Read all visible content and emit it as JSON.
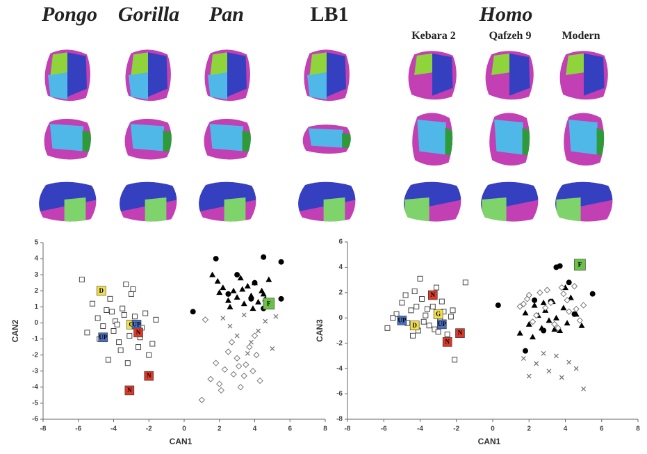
{
  "header": {
    "genera": [
      "Pongo",
      "Gorilla",
      "Pan",
      "LB1",
      "Homo"
    ],
    "homo_specimens": [
      "Kebara 2",
      "Qafzeh 9",
      "Modern"
    ]
  },
  "chart_data": [
    {
      "type": "scatter",
      "xlabel": "CAN1",
      "ylabel": "CAN2",
      "xlim": [
        -8,
        8
      ],
      "ylim": [
        -6,
        5
      ],
      "xticks": [
        -8,
        -6,
        -4,
        -2,
        0,
        2,
        4,
        6,
        8
      ],
      "yticks": [
        -6,
        -5,
        -4,
        -3,
        -2,
        -1,
        0,
        1,
        2,
        3,
        4,
        5
      ],
      "series": [
        {
          "marker": "square",
          "color": "#444444",
          "x": [
            -5.8,
            -5.2,
            -4.9,
            -4.6,
            -4.4,
            -4.2,
            -4.0,
            -3.9,
            -3.7,
            -3.5,
            -3.3,
            -3.1,
            -3.0,
            -2.8,
            -2.6,
            -2.4,
            -2.2,
            -2.0,
            -1.8,
            -1.6,
            -4.8,
            -4.3,
            -3.8,
            -3.4,
            -3.2,
            -2.9,
            -5.5,
            -4.1,
            -3.6,
            -2.5
          ],
          "y": [
            2.7,
            1.2,
            0.3,
            -0.2,
            0.8,
            1.5,
            -0.5,
            0.1,
            -1.2,
            0.9,
            2.4,
            -0.8,
            1.8,
            0.4,
            -1.5,
            -0.3,
            0.6,
            -2.0,
            -1.3,
            0.2,
            -1.0,
            -2.3,
            -0.1,
            0.5,
            -2.5,
            2.1,
            -0.6,
            0.7,
            -1.7,
            -0.9
          ]
        },
        {
          "marker": "triangle",
          "color": "#000000",
          "x": [
            1.6,
            1.9,
            2.2,
            2.5,
            2.8,
            3.0,
            3.2,
            3.4,
            3.6,
            3.8,
            4.0,
            4.2,
            4.4,
            4.6,
            4.8,
            2.0,
            2.6,
            3.3,
            3.9,
            4.5
          ],
          "y": [
            3.0,
            2.6,
            2.2,
            1.4,
            2.0,
            1.6,
            2.8,
            1.2,
            2.3,
            1.7,
            2.5,
            1.3,
            2.0,
            1.5,
            2.7,
            1.9,
            1.0,
            2.1,
            0.9,
            1.8
          ]
        },
        {
          "marker": "circle",
          "color": "#000000",
          "x": [
            0.5,
            1.8,
            4.5,
            5.5,
            3.0,
            4.0,
            5.5,
            4.5,
            2.5,
            3.8
          ],
          "y": [
            0.7,
            4.0,
            4.1,
            3.8,
            3.0,
            2.5,
            1.5,
            0.9,
            1.8,
            1.5
          ]
        },
        {
          "marker": "diamond",
          "color": "#777777",
          "x": [
            1.0,
            1.5,
            1.8,
            2.0,
            2.3,
            2.5,
            2.8,
            3.0,
            3.2,
            3.5,
            3.7,
            3.9,
            4.1,
            4.3,
            1.2,
            2.1,
            2.7,
            3.4,
            4.0,
            3.1
          ],
          "y": [
            -4.8,
            -3.5,
            -2.5,
            -3.8,
            -2.9,
            -1.8,
            -3.2,
            -2.2,
            -4.0,
            -2.6,
            -1.5,
            -3.0,
            -2.0,
            -3.6,
            0.2,
            -4.2,
            -1.2,
            -3.3,
            -0.8,
            -2.7
          ]
        },
        {
          "marker": "cross",
          "color": "#777777",
          "x": [
            2.2,
            2.6,
            3.0,
            3.4,
            3.8,
            4.2,
            4.6,
            5.0,
            5.2,
            3.6
          ],
          "y": [
            0.3,
            -0.2,
            -0.8,
            0.5,
            -1.2,
            -0.5,
            0.1,
            -1.6,
            0.4,
            -1.9
          ]
        }
      ],
      "labeled_points": [
        {
          "label": "D",
          "x": -4.7,
          "y": 2.0,
          "color": "#f0de4a"
        },
        {
          "label": "G",
          "x": -3.0,
          "y": -0.1,
          "color": "#f0de4a"
        },
        {
          "label": "UP",
          "x": -4.6,
          "y": -0.9,
          "color": "#4a70c0"
        },
        {
          "label": "UP",
          "x": -2.7,
          "y": -0.1,
          "color": "#4a70c0"
        },
        {
          "label": "N",
          "x": -2.6,
          "y": -0.6,
          "color": "#d83a2a"
        },
        {
          "label": "N",
          "x": -2.0,
          "y": -3.3,
          "color": "#d83a2a"
        },
        {
          "label": "N",
          "x": -3.1,
          "y": -4.2,
          "color": "#d83a2a"
        },
        {
          "label": "F",
          "x": 4.8,
          "y": 1.2,
          "color": "#6cc04a"
        }
      ]
    },
    {
      "type": "scatter",
      "xlabel": "CAN1",
      "ylabel": "CAN3",
      "xlim": [
        -8,
        8
      ],
      "ylim": [
        -8,
        6
      ],
      "xticks": [
        -8,
        -6,
        -4,
        -2,
        0,
        2,
        4,
        6,
        8
      ],
      "yticks": [
        -8,
        -6,
        -4,
        -2,
        0,
        2,
        4,
        6
      ],
      "series": [
        {
          "marker": "square",
          "color": "#444444",
          "x": [
            -5.8,
            -5.3,
            -5.0,
            -4.7,
            -4.5,
            -4.3,
            -4.1,
            -3.9,
            -3.7,
            -3.5,
            -3.3,
            -3.1,
            -2.9,
            -2.7,
            -2.5,
            -2.3,
            -2.1,
            -1.5,
            -4.8,
            -4.4,
            -4.0,
            -3.6,
            -3.2,
            -2.8,
            -3.8,
            -4.2,
            -3.4,
            -2.2,
            -5.5,
            -3.0
          ],
          "y": [
            -0.8,
            0.3,
            1.2,
            -0.4,
            0.6,
            2.1,
            -1.0,
            1.5,
            0.2,
            -0.6,
            0.9,
            2.4,
            -0.2,
            0.5,
            -1.3,
            0.1,
            -3.3,
            2.8,
            1.8,
            -1.4,
            3.1,
            0.7,
            -0.9,
            1.3,
            -0.3,
            0.9,
            1.9,
            0.6,
            0.0,
            -1.1
          ]
        },
        {
          "marker": "triangle",
          "color": "#000000",
          "x": [
            1.5,
            1.8,
            2.0,
            2.3,
            2.5,
            2.7,
            2.9,
            3.1,
            3.3,
            3.5,
            3.7,
            3.9,
            4.1,
            4.3,
            4.6,
            4.9,
            2.2,
            2.8,
            3.4,
            4.0
          ],
          "y": [
            -1.2,
            0.4,
            -0.5,
            1.0,
            0.2,
            -0.8,
            0.6,
            -0.2,
            1.3,
            0.0,
            -1.0,
            0.8,
            -0.4,
            1.6,
            0.3,
            -0.6,
            -1.5,
            1.2,
            -0.9,
            2.4
          ]
        },
        {
          "marker": "circle",
          "color": "#000000",
          "x": [
            0.3,
            3.5,
            3.7,
            4.2,
            5.5,
            1.8,
            2.3,
            3.2,
            4.5,
            2.8
          ],
          "y": [
            1.0,
            4.0,
            4.1,
            2.8,
            1.9,
            -2.6,
            1.4,
            1.3,
            0.3,
            -1.0
          ]
        },
        {
          "marker": "diamond",
          "color": "#777777",
          "x": [
            1.5,
            1.9,
            2.2,
            2.6,
            2.9,
            3.2,
            3.6,
            3.9,
            4.2,
            4.5,
            4.8,
            5.0,
            1.7,
            2.4,
            3.0,
            3.4,
            4.1,
            4.6,
            2.0,
            3.8
          ],
          "y": [
            0.9,
            1.5,
            -0.3,
            2.0,
            0.8,
            1.2,
            -0.8,
            1.9,
            0.5,
            2.5,
            -0.2,
            1.0,
            1.1,
            0.2,
            2.2,
            -0.5,
            1.4,
            0.7,
            1.8,
            2.4
          ]
        },
        {
          "marker": "cross",
          "color": "#777777",
          "x": [
            1.7,
            2.0,
            2.4,
            2.8,
            3.1,
            3.5,
            3.8,
            4.2,
            4.6,
            5.0
          ],
          "y": [
            -3.2,
            -4.6,
            -3.6,
            -2.8,
            -4.2,
            -3.0,
            -4.7,
            -3.5,
            -4.0,
            -5.6
          ]
        }
      ],
      "labeled_points": [
        {
          "label": "N",
          "x": -3.3,
          "y": 1.8,
          "color": "#d83a2a"
        },
        {
          "label": "G",
          "x": -3.0,
          "y": 0.3,
          "color": "#f0de4a"
        },
        {
          "label": "D",
          "x": -4.3,
          "y": -0.6,
          "color": "#f0de4a"
        },
        {
          "label": "UP",
          "x": -5.0,
          "y": -0.2,
          "color": "#4a70c0"
        },
        {
          "label": "UP",
          "x": -2.8,
          "y": -0.5,
          "color": "#4a70c0"
        },
        {
          "label": "N",
          "x": -2.5,
          "y": -1.9,
          "color": "#d83a2a"
        },
        {
          "label": "N",
          "x": -1.8,
          "y": -1.2,
          "color": "#d83a2a"
        },
        {
          "label": "F",
          "x": 4.8,
          "y": 4.2,
          "color": "#6cc04a"
        }
      ]
    }
  ]
}
